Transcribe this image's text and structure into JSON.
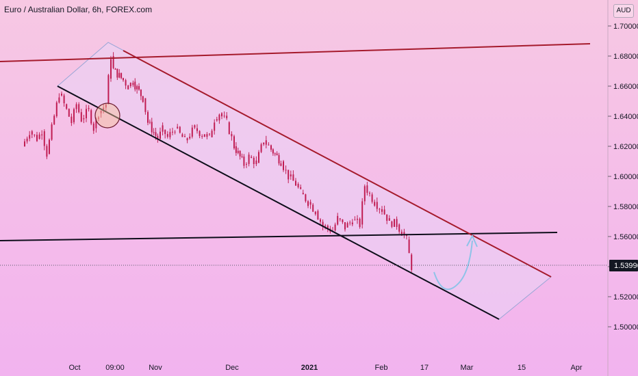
{
  "header": {
    "title": "Euro / Australian Dollar, 6h, FOREX.com",
    "currency": "AUD"
  },
  "colors": {
    "bg_top": "#f7c8e3",
    "bg_bottom": "#f2b3ef",
    "candle": "#c01c52",
    "upper_line": "#a51a2c",
    "lower_line": "#0d0d1a",
    "channel_fill": "#e9d3f5",
    "channel_border": "#9aa6d6",
    "arrow": "#8ec3e8",
    "highlight_circle": "#f4c59a",
    "price_tag_bg": "#131722"
  },
  "chart_data": {
    "type": "candlestick",
    "title": "Euro / Australian Dollar, 6h, FOREX.com",
    "y_axis": {
      "unit": "AUD",
      "ticks": [
        "1.50000",
        "1.52000",
        "1.54000",
        "1.56000",
        "1.58000",
        "1.60000",
        "1.62000",
        "1.64000",
        "1.66000",
        "1.68000",
        "1.70000"
      ],
      "ylim": [
        1.482,
        1.7155
      ]
    },
    "x_axis": {
      "ticks": [
        "Oct",
        "09:00",
        "Nov",
        "Dec",
        "2021",
        "Feb",
        "17",
        "Mar",
        "15",
        "Apr"
      ]
    },
    "last_price": "1.53996",
    "price_path": [
      {
        "date": "Sep 15",
        "close": 1.62
      },
      {
        "date": "Sep 18",
        "close": 1.63
      },
      {
        "date": "Sep 21",
        "close": 1.625
      },
      {
        "date": "Sep 23",
        "close": 1.63
      },
      {
        "date": "Sep 25",
        "close": 1.615
      },
      {
        "date": "Sep 28",
        "close": 1.64
      },
      {
        "date": "Sep 30",
        "close": 1.655
      },
      {
        "date": "Oct 2",
        "close": 1.648
      },
      {
        "date": "Oct 5",
        "close": 1.636
      },
      {
        "date": "Oct 7",
        "close": 1.648
      },
      {
        "date": "Oct 9",
        "close": 1.638
      },
      {
        "date": "Oct 12",
        "close": 1.644
      },
      {
        "date": "Oct 14",
        "close": 1.632
      },
      {
        "date": "Oct 16",
        "close": 1.642
      },
      {
        "date": "Oct 19",
        "close": 1.648
      },
      {
        "date": "Oct 20",
        "close": 1.665
      },
      {
        "date": "Oct 21",
        "close": 1.68
      },
      {
        "date": "Oct 22",
        "close": 1.671
      },
      {
        "date": "Oct 26",
        "close": 1.664
      },
      {
        "date": "Oct 28",
        "close": 1.66
      },
      {
        "date": "Oct 30",
        "close": 1.663
      },
      {
        "date": "Nov 3",
        "close": 1.652
      },
      {
        "date": "Nov 5",
        "close": 1.636
      },
      {
        "date": "Nov 9",
        "close": 1.625
      },
      {
        "date": "Nov 11",
        "close": 1.631
      },
      {
        "date": "Nov 13",
        "close": 1.626
      },
      {
        "date": "Nov 16",
        "close": 1.632
      },
      {
        "date": "Nov 18",
        "close": 1.628
      },
      {
        "date": "Nov 20",
        "close": 1.624
      },
      {
        "date": "Nov 24",
        "close": 1.632
      },
      {
        "date": "Nov 27",
        "close": 1.628
      },
      {
        "date": "Nov 30",
        "close": 1.626
      },
      {
        "date": "Dec 2",
        "close": 1.638
      },
      {
        "date": "Dec 4",
        "close": 1.642
      },
      {
        "date": "Dec 7",
        "close": 1.636
      },
      {
        "date": "Dec 10",
        "close": 1.62
      },
      {
        "date": "Dec 14",
        "close": 1.608
      },
      {
        "date": "Dec 16",
        "close": 1.613
      },
      {
        "date": "Dec 19",
        "close": 1.609
      },
      {
        "date": "Dec 22",
        "close": 1.624
      },
      {
        "date": "Dec 25",
        "close": 1.618
      },
      {
        "date": "Dec 29",
        "close": 1.61
      },
      {
        "date": "Jan 1",
        "close": 1.6
      },
      {
        "date": "Jan 4",
        "close": 1.595
      },
      {
        "date": "Jan 6",
        "close": 1.589
      },
      {
        "date": "Jan 9",
        "close": 1.583
      },
      {
        "date": "Jan 12",
        "close": 1.577
      },
      {
        "date": "Jan 15",
        "close": 1.567
      },
      {
        "date": "Jan 19",
        "close": 1.564
      },
      {
        "date": "Jan 21",
        "close": 1.572
      },
      {
        "date": "Jan 24",
        "close": 1.566
      },
      {
        "date": "Jan 27",
        "close": 1.571
      },
      {
        "date": "Jan 30",
        "close": 1.568
      },
      {
        "date": "Feb 1",
        "close": 1.594
      },
      {
        "date": "Feb 3",
        "close": 1.588
      },
      {
        "date": "Feb 5",
        "close": 1.583
      },
      {
        "date": "Feb 8",
        "close": 1.578
      },
      {
        "date": "Feb 11",
        "close": 1.57
      },
      {
        "date": "Feb 14",
        "close": 1.568
      },
      {
        "date": "Feb 16",
        "close": 1.563
      },
      {
        "date": "Feb 18",
        "close": 1.558
      },
      {
        "date": "Feb 19",
        "close": 1.548
      },
      {
        "date": "Feb 20",
        "close": 1.54
      }
    ]
  }
}
